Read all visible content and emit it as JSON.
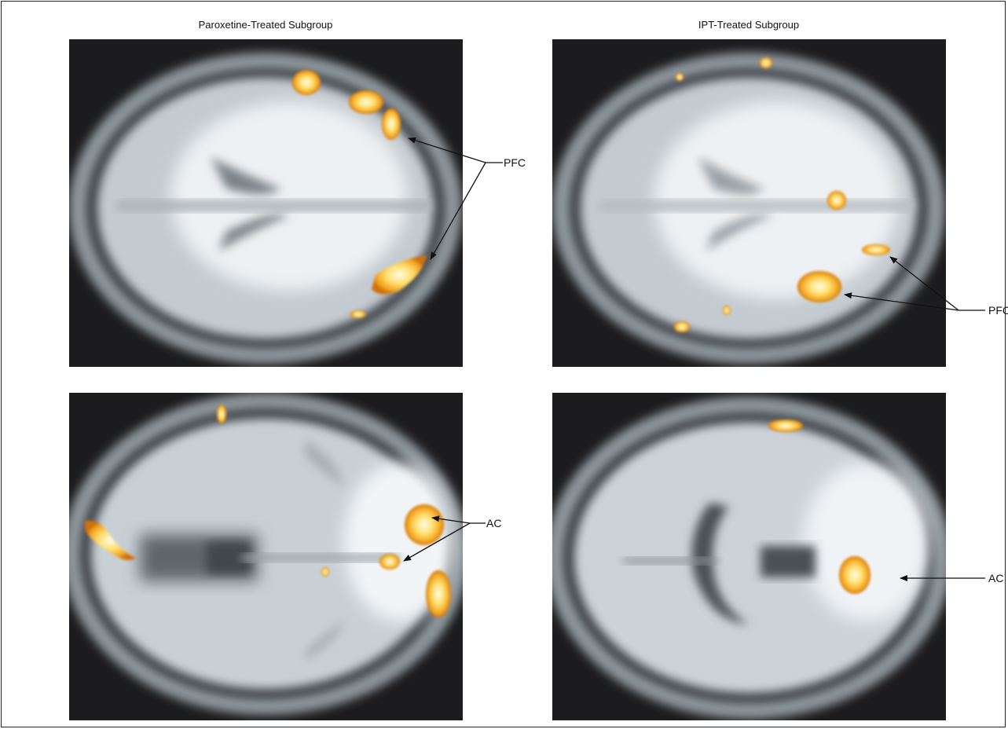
{
  "figure": {
    "left_column_title": "Paroxetine-Treated Subgroup",
    "right_column_title": "IPT-Treated Subgroup",
    "annotations": {
      "top_left": "PFC",
      "top_right": "PFC",
      "bottom_left": "AC",
      "bottom_right": "AC"
    },
    "colors": {
      "background": "#1c1c1f",
      "skull": "#9aa3a8",
      "brain": "#dfe4e8",
      "activation_core": "#fff7c8",
      "activation_edge": "#f0a020"
    }
  }
}
